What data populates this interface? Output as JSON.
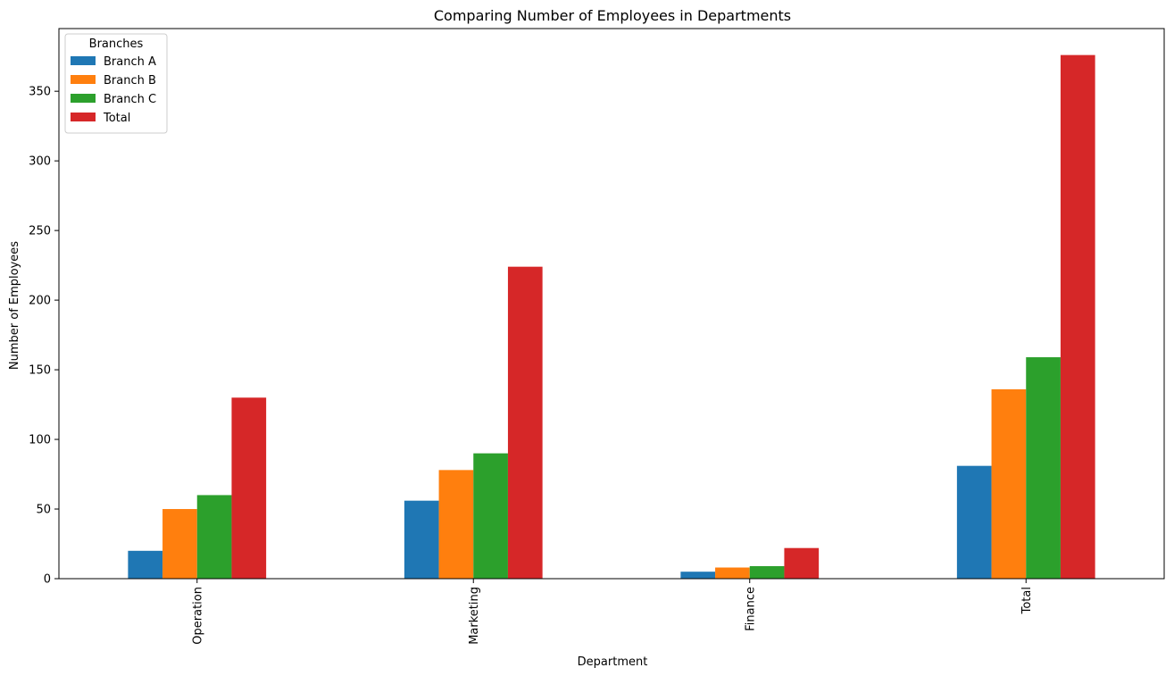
{
  "chart_data": {
    "type": "bar",
    "title": "Comparing Number of Employees in Departments",
    "xlabel": "Department",
    "ylabel": "Number of Employees",
    "categories": [
      "Operation",
      "Marketing",
      "Finance",
      "Total"
    ],
    "series": [
      {
        "name": "Branch A",
        "values": [
          20,
          56,
          5,
          81
        ],
        "color": "#1f77b4"
      },
      {
        "name": "Branch B",
        "values": [
          50,
          78,
          8,
          136
        ],
        "color": "#ff7f0e"
      },
      {
        "name": "Branch C",
        "values": [
          60,
          90,
          9,
          159
        ],
        "color": "#2ca02c"
      },
      {
        "name": "Total",
        "values": [
          130,
          224,
          22,
          376
        ],
        "color": "#d62728"
      }
    ],
    "ylim": [
      0,
      395
    ],
    "yticks": [
      0,
      50,
      100,
      150,
      200,
      250,
      300,
      350
    ],
    "grid": false,
    "legend": {
      "title": "Branches",
      "position": "top-left"
    },
    "xtick_rotation": "vertical"
  }
}
